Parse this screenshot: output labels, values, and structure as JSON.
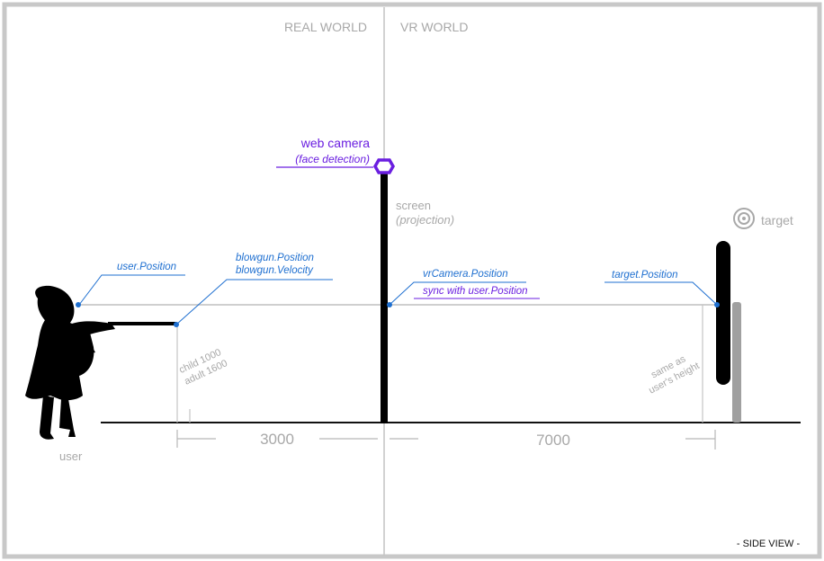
{
  "sections": {
    "real_world": "REAL WORLD",
    "vr_world": "VR WORLD"
  },
  "camera": {
    "title": "web camera",
    "subtitle": "(face detection)"
  },
  "screen": {
    "title": "screen",
    "subtitle": "(projection)"
  },
  "target": {
    "label": "target"
  },
  "annotations": {
    "user_position": "user.Position",
    "blowgun_position": "blowgun.Position",
    "blowgun_velocity": "blowgun.Velocity",
    "vrcamera_position": "vrCamera.Position",
    "sync_user": "sync with user.Position",
    "target_position": "target.Position"
  },
  "heights": {
    "child": "child  1000",
    "adult": "adult  1600"
  },
  "same_height": {
    "line1": "same as",
    "line2": "user's height"
  },
  "user": {
    "label": "user"
  },
  "distances": {
    "left": "3000",
    "right": "7000"
  },
  "view_label": "- SIDE VIEW -",
  "colors": {
    "frame": "#c8c8c8",
    "label_gray": "#a8a8a8",
    "annotation_blue": "#1e6fd0",
    "annotation_purple": "#6a1ee0",
    "ground": "#111111"
  }
}
